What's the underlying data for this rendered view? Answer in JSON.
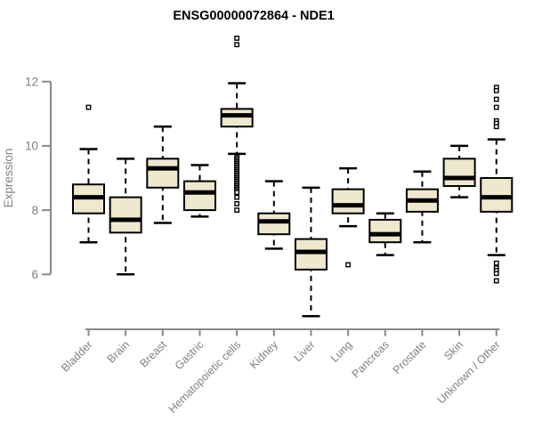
{
  "chart_data": {
    "type": "boxplot",
    "title": "ENSG00000072864 - NDE1",
    "ylabel": "Expression",
    "xlabel": "",
    "yaxis": {
      "min": 6,
      "max": 12,
      "ticks": [
        6,
        8,
        10,
        12
      ]
    },
    "grid": false,
    "legend": "none",
    "categories": [
      "Bladder",
      "Brain",
      "Breast",
      "Gastric",
      "Hematopoietic cells",
      "Kidney",
      "Liver",
      "Lung",
      "Pancreas",
      "Prostate",
      "Skin",
      "Unknown / Other"
    ],
    "boxes": [
      {
        "category": "Bladder",
        "whisker_low": 7.0,
        "q1": 7.9,
        "median": 8.4,
        "q3": 8.8,
        "whisker_high": 9.9,
        "outliers": [
          11.2
        ]
      },
      {
        "category": "Brain",
        "whisker_low": 6.0,
        "q1": 7.3,
        "median": 7.7,
        "q3": 8.4,
        "whisker_high": 9.6,
        "outliers": []
      },
      {
        "category": "Breast",
        "whisker_low": 7.6,
        "q1": 8.7,
        "median": 9.3,
        "q3": 9.6,
        "whisker_high": 10.6,
        "outliers": []
      },
      {
        "category": "Gastric",
        "whisker_low": 7.8,
        "q1": 8.0,
        "median": 8.55,
        "q3": 8.9,
        "whisker_high": 9.4,
        "outliers": []
      },
      {
        "category": "Hematopoietic cells",
        "whisker_low": 9.75,
        "q1": 10.6,
        "median": 10.95,
        "q3": 11.15,
        "whisker_high": 11.95,
        "outliers": [
          13.35,
          13.15,
          9.65,
          9.6,
          9.55,
          9.5,
          9.45,
          9.4,
          9.35,
          9.3,
          9.25,
          9.2,
          9.15,
          9.1,
          9.05,
          9.0,
          8.95,
          8.9,
          8.85,
          8.8,
          8.75,
          8.7,
          8.65,
          8.6,
          8.55,
          8.4,
          8.2,
          8.0
        ]
      },
      {
        "category": "Kidney",
        "whisker_low": 6.8,
        "q1": 7.25,
        "median": 7.65,
        "q3": 7.9,
        "whisker_high": 8.9,
        "outliers": []
      },
      {
        "category": "Liver",
        "whisker_low": 4.7,
        "q1": 6.15,
        "median": 6.7,
        "q3": 7.1,
        "whisker_high": 8.7,
        "outliers": []
      },
      {
        "category": "Lung",
        "whisker_low": 7.5,
        "q1": 7.9,
        "median": 8.15,
        "q3": 8.65,
        "whisker_high": 9.3,
        "outliers": [
          6.3
        ]
      },
      {
        "category": "Pancreas",
        "whisker_low": 6.6,
        "q1": 7.0,
        "median": 7.25,
        "q3": 7.7,
        "whisker_high": 7.9,
        "outliers": []
      },
      {
        "category": "Prostate",
        "whisker_low": 7.0,
        "q1": 7.95,
        "median": 8.3,
        "q3": 8.65,
        "whisker_high": 9.2,
        "outliers": []
      },
      {
        "category": "Skin",
        "whisker_low": 8.4,
        "q1": 8.75,
        "median": 9.0,
        "q3": 9.6,
        "whisker_high": 10.0,
        "outliers": []
      },
      {
        "category": "Unknown / Other",
        "whisker_low": 6.6,
        "q1": 7.95,
        "median": 8.4,
        "q3": 9.0,
        "whisker_high": 10.2,
        "outliers": [
          11.82,
          11.72,
          11.45,
          11.2,
          10.78,
          10.7,
          10.6,
          6.35,
          6.2,
          6.12,
          6.03,
          5.8
        ]
      }
    ],
    "colors": {
      "box_fill": "#EDE8CE",
      "box_border": "#000000",
      "median": "#000000",
      "whisker": "#000000",
      "outlier": "#000000",
      "axis": "#888888",
      "tick_label": "#808080",
      "title": "#000000",
      "background": "#FFFFFF"
    }
  }
}
